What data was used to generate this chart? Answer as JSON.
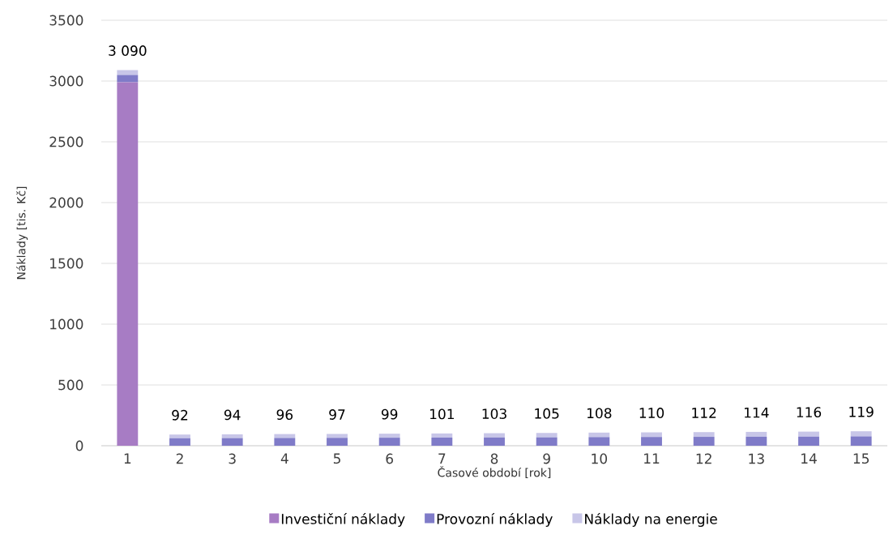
{
  "chart_data": {
    "type": "bar",
    "stacked": true,
    "xlabel": "Časové období [rok]",
    "ylabel": "Náklady [tis. Kč]",
    "categories": [
      "1",
      "2",
      "3",
      "4",
      "5",
      "6",
      "7",
      "8",
      "9",
      "10",
      "11",
      "12",
      "13",
      "14",
      "15"
    ],
    "series": [
      {
        "name": "Investiční náklady",
        "color": "#a77cc4",
        "values": [
          2990,
          0,
          0,
          0,
          0,
          0,
          0,
          0,
          0,
          0,
          0,
          0,
          0,
          0,
          0
        ]
      },
      {
        "name": "Provozní náklady",
        "color": "#7f7bc8",
        "values": [
          60,
          62,
          63,
          64,
          65,
          66,
          67,
          68,
          69,
          71,
          72,
          73,
          74,
          75,
          77
        ]
      },
      {
        "name": "Náklady na energie",
        "color": "#c8c6e8",
        "values": [
          40,
          30,
          31,
          32,
          32,
          33,
          34,
          35,
          36,
          37,
          38,
          39,
          40,
          41,
          42
        ]
      }
    ],
    "totals": [
      "3 090",
      "92",
      "94",
      "96",
      "97",
      "99",
      "101",
      "103",
      "105",
      "108",
      "110",
      "112",
      "114",
      "116",
      "119"
    ],
    "ylim": [
      0,
      3500
    ],
    "yticks": [
      0,
      500,
      1000,
      1500,
      2000,
      2500,
      3000,
      3500
    ],
    "grid": "y",
    "legend": "bottom"
  }
}
